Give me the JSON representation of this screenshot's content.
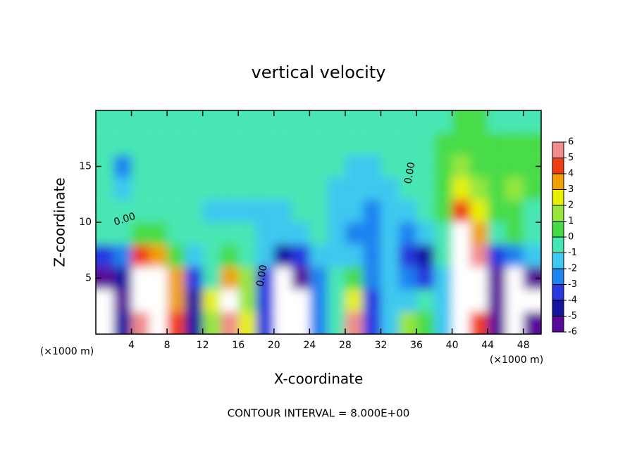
{
  "chart_data": {
    "type": "contour",
    "title": "vertical velocity",
    "x_label": "X-coordinate",
    "y_label": "Z-coordinate",
    "x_units": "(×1000 m)",
    "contour_label": "0.00",
    "footer": "CONTOUR INTERVAL = 8.000E+00",
    "xlim": [
      0,
      50
    ],
    "ylim": [
      0,
      20
    ],
    "xticks": [
      4,
      8,
      12,
      16,
      20,
      24,
      28,
      32,
      36,
      40,
      44,
      48
    ],
    "yticks": [
      5,
      10,
      15
    ],
    "x": [
      1,
      3,
      5,
      7,
      9,
      11,
      13,
      15,
      17,
      19,
      21,
      23,
      25,
      27,
      29,
      31,
      33,
      35,
      37,
      39,
      41,
      43,
      45,
      47,
      49
    ],
    "y": [
      1,
      3,
      5,
      7,
      9,
      11,
      13,
      15,
      17,
      19
    ],
    "z": [
      [
        -7,
        -4,
        6,
        8,
        5,
        -4,
        2,
        6,
        3,
        -3,
        -7,
        -8,
        -2,
        0,
        6,
        -3,
        -1,
        2,
        1,
        -1,
        7,
        5,
        -5,
        -7,
        -6
      ],
      [
        -8,
        -5,
        7,
        9,
        4,
        -4,
        3,
        7,
        2,
        -3,
        -8,
        -8,
        -2,
        0,
        3,
        -3,
        -1,
        -1,
        0,
        -1,
        9,
        7,
        -5,
        -8,
        -7
      ],
      [
        -6,
        -4,
        8,
        8,
        4,
        -3,
        0,
        4,
        2,
        -3,
        -8,
        -6,
        -2,
        0,
        1,
        -2,
        -1,
        -2,
        -3,
        -1,
        10,
        8,
        -6,
        -8,
        -5
      ],
      [
        -3,
        -2,
        5,
        4,
        1,
        -1,
        0,
        1,
        0,
        -1,
        -4,
        -3,
        -1,
        -1,
        -1,
        -2,
        -1,
        -3,
        -4,
        0,
        9,
        6,
        -3,
        -2,
        -1
      ],
      [
        0,
        0,
        1,
        1,
        0,
        0,
        0,
        0,
        0,
        -1,
        -1,
        -1,
        0,
        -1,
        -2,
        -2,
        -1,
        -2,
        -1,
        0,
        7,
        4,
        0,
        1,
        0
      ],
      [
        0,
        0,
        0,
        0,
        0,
        0,
        -1,
        -1,
        -1,
        -1,
        -1,
        0,
        0,
        -1,
        -1,
        -2,
        -1,
        -1,
        0,
        1,
        5,
        3,
        1,
        1,
        0
      ],
      [
        0,
        -1,
        0,
        0,
        0,
        0,
        0,
        0,
        0,
        0,
        0,
        0,
        0,
        -1,
        -1,
        -1,
        -1,
        0,
        0,
        1,
        3,
        2,
        1,
        2,
        1
      ],
      [
        0,
        -2,
        0,
        0,
        0,
        0,
        0,
        0,
        0,
        0,
        0,
        0,
        0,
        0,
        -1,
        -1,
        0,
        0,
        0,
        1,
        2,
        1,
        1,
        1,
        1
      ],
      [
        0,
        0,
        0,
        0,
        0,
        0,
        0,
        0,
        0,
        0,
        0,
        0,
        0,
        0,
        0,
        0,
        0,
        0,
        0,
        1,
        1,
        1,
        1,
        1,
        1
      ],
      [
        0,
        0,
        0,
        0,
        0,
        0,
        0,
        0,
        0,
        0,
        0,
        0,
        0,
        0,
        0,
        0,
        0,
        0,
        0,
        0,
        1,
        1,
        0,
        0,
        0
      ]
    ],
    "colorbar_ticks": [
      -6,
      -5,
      -4,
      -3,
      -2,
      -1,
      0,
      1,
      2,
      3,
      4,
      5,
      6
    ],
    "colors": [
      "#5a0a9a",
      "#1414a0",
      "#2838e0",
      "#1e82f0",
      "#3cc8f0",
      "#46e6b4",
      "#46dc46",
      "#96e63c",
      "#e6f000",
      "#f0a000",
      "#f03c14",
      "#f08c8c"
    ]
  }
}
